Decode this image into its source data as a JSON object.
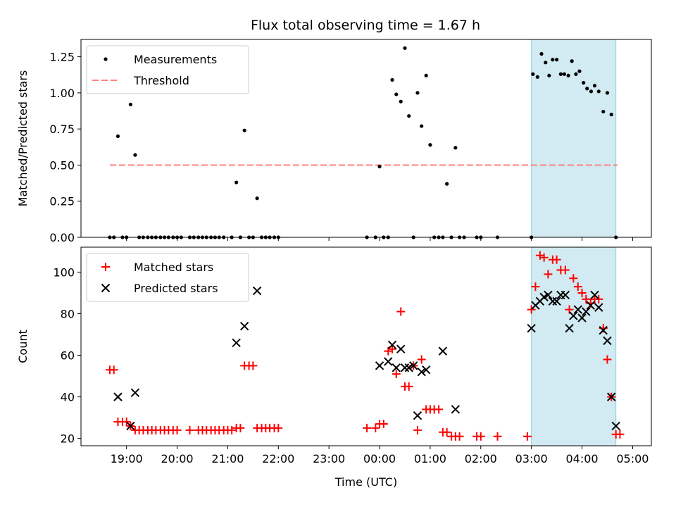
{
  "chart_data": {
    "title": "Flux total observing time = 1.67 h",
    "x_axis": {
      "label": "Time (UTC)",
      "range_hours": [
        18.1,
        29.37
      ],
      "tick_hours": [
        19,
        20,
        21,
        22,
        23,
        24,
        25,
        26,
        27,
        28,
        29
      ],
      "tick_labels": [
        "19:00",
        "20:00",
        "21:00",
        "22:00",
        "23:00",
        "00:00",
        "01:00",
        "02:00",
        "03:00",
        "04:00",
        "05:00"
      ]
    },
    "highlight": {
      "x_start": 27.0,
      "x_end": 28.67,
      "color": "#add8e6"
    },
    "top": {
      "type": "scatter",
      "ylabel": "Matched/Predicted stars",
      "ylim": [
        0,
        1.37
      ],
      "yticks": [
        0.0,
        0.25,
        0.5,
        0.75,
        1.0,
        1.25
      ],
      "ytick_labels": [
        "0.00",
        "0.25",
        "0.50",
        "0.75",
        "1.00",
        "1.25"
      ],
      "legend": {
        "location": "upper left",
        "items": [
          {
            "label": "Measurements",
            "marker": "dot",
            "color": "#000000"
          },
          {
            "label": "Threshold",
            "marker": "dashed-line",
            "color": "#ff8080"
          }
        ]
      },
      "threshold": {
        "y": 0.5,
        "x_start": 18.67,
        "x_end": 28.7,
        "color": "#ff8080"
      },
      "measurements": [
        [
          18.67,
          0
        ],
        [
          18.75,
          0
        ],
        [
          18.83,
          0.7
        ],
        [
          18.92,
          0
        ],
        [
          19.0,
          0
        ],
        [
          19.08,
          0.92
        ],
        [
          19.17,
          0.57
        ],
        [
          19.25,
          0
        ],
        [
          19.33,
          0
        ],
        [
          19.42,
          0
        ],
        [
          19.5,
          0
        ],
        [
          19.58,
          0
        ],
        [
          19.67,
          0
        ],
        [
          19.75,
          0
        ],
        [
          19.83,
          0
        ],
        [
          19.92,
          0
        ],
        [
          20.0,
          0
        ],
        [
          20.08,
          0
        ],
        [
          20.25,
          0
        ],
        [
          20.33,
          0
        ],
        [
          20.42,
          0
        ],
        [
          20.5,
          0
        ],
        [
          20.58,
          0
        ],
        [
          20.67,
          0
        ],
        [
          20.75,
          0
        ],
        [
          20.83,
          0
        ],
        [
          20.92,
          0
        ],
        [
          21.08,
          0
        ],
        [
          21.17,
          0.38
        ],
        [
          21.25,
          0
        ],
        [
          21.33,
          0.74
        ],
        [
          21.42,
          0
        ],
        [
          21.5,
          0
        ],
        [
          21.58,
          0.27
        ],
        [
          21.67,
          0
        ],
        [
          21.75,
          0
        ],
        [
          21.83,
          0
        ],
        [
          21.92,
          0
        ],
        [
          22.0,
          0
        ],
        [
          23.75,
          0
        ],
        [
          23.92,
          0
        ],
        [
          24.0,
          0.49
        ],
        [
          24.08,
          0
        ],
        [
          24.17,
          0
        ],
        [
          24.25,
          1.09
        ],
        [
          24.33,
          0.99
        ],
        [
          24.42,
          0.94
        ],
        [
          24.5,
          1.31
        ],
        [
          24.58,
          0.84
        ],
        [
          24.67,
          0
        ],
        [
          24.75,
          1.0
        ],
        [
          24.83,
          0.77
        ],
        [
          24.92,
          1.12
        ],
        [
          25.0,
          0.64
        ],
        [
          25.08,
          0
        ],
        [
          25.17,
          0
        ],
        [
          25.25,
          0
        ],
        [
          25.33,
          0.37
        ],
        [
          25.42,
          0
        ],
        [
          25.5,
          0.62
        ],
        [
          25.58,
          0
        ],
        [
          25.67,
          0
        ],
        [
          25.92,
          0
        ],
        [
          26.0,
          0
        ],
        [
          26.33,
          0
        ],
        [
          27.0,
          0
        ],
        [
          27.03,
          1.13
        ],
        [
          27.12,
          1.11
        ],
        [
          27.2,
          1.27
        ],
        [
          27.28,
          1.21
        ],
        [
          27.35,
          1.12
        ],
        [
          27.42,
          1.23
        ],
        [
          27.5,
          1.23
        ],
        [
          27.58,
          1.13
        ],
        [
          27.65,
          1.13
        ],
        [
          27.73,
          1.12
        ],
        [
          27.8,
          1.22
        ],
        [
          27.88,
          1.13
        ],
        [
          27.95,
          1.15
        ],
        [
          28.03,
          1.07
        ],
        [
          28.1,
          1.03
        ],
        [
          28.18,
          1.01
        ],
        [
          28.25,
          1.05
        ],
        [
          28.33,
          1.01
        ],
        [
          28.42,
          0.87
        ],
        [
          28.5,
          1.0
        ],
        [
          28.58,
          0.85
        ],
        [
          28.67,
          0
        ]
      ]
    },
    "bottom": {
      "type": "scatter",
      "ylabel": "Count",
      "ylim": [
        16.5,
        112
      ],
      "yticks": [
        20,
        40,
        60,
        80,
        100
      ],
      "ytick_labels": [
        "20",
        "40",
        "60",
        "80",
        "100"
      ],
      "legend": {
        "location": "upper left",
        "items": [
          {
            "label": "Matched stars",
            "marker": "plus",
            "color": "#ff0000"
          },
          {
            "label": "Predicted stars",
            "marker": "x",
            "color": "#000000"
          }
        ]
      },
      "series": [
        {
          "name": "Matched stars",
          "marker": "plus",
          "color": "#ff0000",
          "points": [
            [
              18.67,
              53
            ],
            [
              18.75,
              53
            ],
            [
              18.83,
              28
            ],
            [
              18.92,
              28
            ],
            [
              19.0,
              28
            ],
            [
              19.08,
              26
            ],
            [
              19.17,
              24
            ],
            [
              19.25,
              24
            ],
            [
              19.33,
              24
            ],
            [
              19.42,
              24
            ],
            [
              19.5,
              24
            ],
            [
              19.58,
              24
            ],
            [
              19.67,
              24
            ],
            [
              19.75,
              24
            ],
            [
              19.83,
              24
            ],
            [
              19.92,
              24
            ],
            [
              20.0,
              24
            ],
            [
              20.25,
              24
            ],
            [
              20.42,
              24
            ],
            [
              20.5,
              24
            ],
            [
              20.58,
              24
            ],
            [
              20.67,
              24
            ],
            [
              20.75,
              24
            ],
            [
              20.83,
              24
            ],
            [
              20.92,
              24
            ],
            [
              21.0,
              24
            ],
            [
              21.08,
              24
            ],
            [
              21.17,
              25
            ],
            [
              21.25,
              25
            ],
            [
              21.33,
              55
            ],
            [
              21.42,
              55
            ],
            [
              21.5,
              55
            ],
            [
              21.58,
              25
            ],
            [
              21.67,
              25
            ],
            [
              21.75,
              25
            ],
            [
              21.83,
              25
            ],
            [
              21.92,
              25
            ],
            [
              22.0,
              25
            ],
            [
              23.75,
              25
            ],
            [
              23.92,
              25
            ],
            [
              24.0,
              27
            ],
            [
              24.08,
              27
            ],
            [
              24.17,
              62
            ],
            [
              24.25,
              63
            ],
            [
              24.33,
              51
            ],
            [
              24.42,
              81
            ],
            [
              24.5,
              45
            ],
            [
              24.58,
              45
            ],
            [
              24.67,
              55
            ],
            [
              24.75,
              24
            ],
            [
              24.83,
              58
            ],
            [
              24.92,
              34
            ],
            [
              25.0,
              34
            ],
            [
              25.08,
              34
            ],
            [
              25.17,
              34
            ],
            [
              25.25,
              23
            ],
            [
              25.33,
              23
            ],
            [
              25.42,
              21
            ],
            [
              25.5,
              21
            ],
            [
              25.58,
              21
            ],
            [
              25.92,
              21
            ],
            [
              26.0,
              21
            ],
            [
              26.33,
              21
            ],
            [
              26.92,
              21
            ],
            [
              27.0,
              82
            ],
            [
              27.08,
              93
            ],
            [
              27.17,
              108
            ],
            [
              27.25,
              107
            ],
            [
              27.33,
              99
            ],
            [
              27.42,
              106
            ],
            [
              27.5,
              106
            ],
            [
              27.58,
              101
            ],
            [
              27.67,
              101
            ],
            [
              27.75,
              82
            ],
            [
              27.83,
              97
            ],
            [
              27.92,
              93
            ],
            [
              28.0,
              90
            ],
            [
              28.08,
              87
            ],
            [
              28.17,
              85
            ],
            [
              28.25,
              87
            ],
            [
              28.33,
              87
            ],
            [
              28.42,
              73
            ],
            [
              28.5,
              58
            ],
            [
              28.58,
              40
            ],
            [
              28.67,
              22
            ],
            [
              28.75,
              22
            ]
          ]
        },
        {
          "name": "Predicted stars",
          "marker": "x",
          "color": "#000000",
          "points": [
            [
              18.83,
              40
            ],
            [
              19.08,
              26
            ],
            [
              19.17,
              42
            ],
            [
              21.17,
              66
            ],
            [
              21.33,
              74
            ],
            [
              21.58,
              91
            ],
            [
              24.0,
              55
            ],
            [
              24.17,
              57
            ],
            [
              24.25,
              65
            ],
            [
              24.33,
              54
            ],
            [
              24.42,
              63
            ],
            [
              24.5,
              54
            ],
            [
              24.58,
              54
            ],
            [
              24.67,
              55
            ],
            [
              24.75,
              31
            ],
            [
              24.83,
              52
            ],
            [
              24.92,
              53
            ],
            [
              25.25,
              62
            ],
            [
              25.5,
              34
            ],
            [
              27.0,
              73
            ],
            [
              27.08,
              84
            ],
            [
              27.17,
              86
            ],
            [
              27.25,
              88
            ],
            [
              27.33,
              89
            ],
            [
              27.42,
              86
            ],
            [
              27.5,
              86
            ],
            [
              27.58,
              89
            ],
            [
              27.67,
              89
            ],
            [
              27.75,
              73
            ],
            [
              27.83,
              79
            ],
            [
              27.92,
              82
            ],
            [
              28.0,
              78
            ],
            [
              28.08,
              81
            ],
            [
              28.17,
              84
            ],
            [
              28.25,
              89
            ],
            [
              28.33,
              83
            ],
            [
              28.42,
              72
            ],
            [
              28.5,
              67
            ],
            [
              28.58,
              40
            ],
            [
              28.67,
              26
            ]
          ]
        }
      ]
    }
  }
}
